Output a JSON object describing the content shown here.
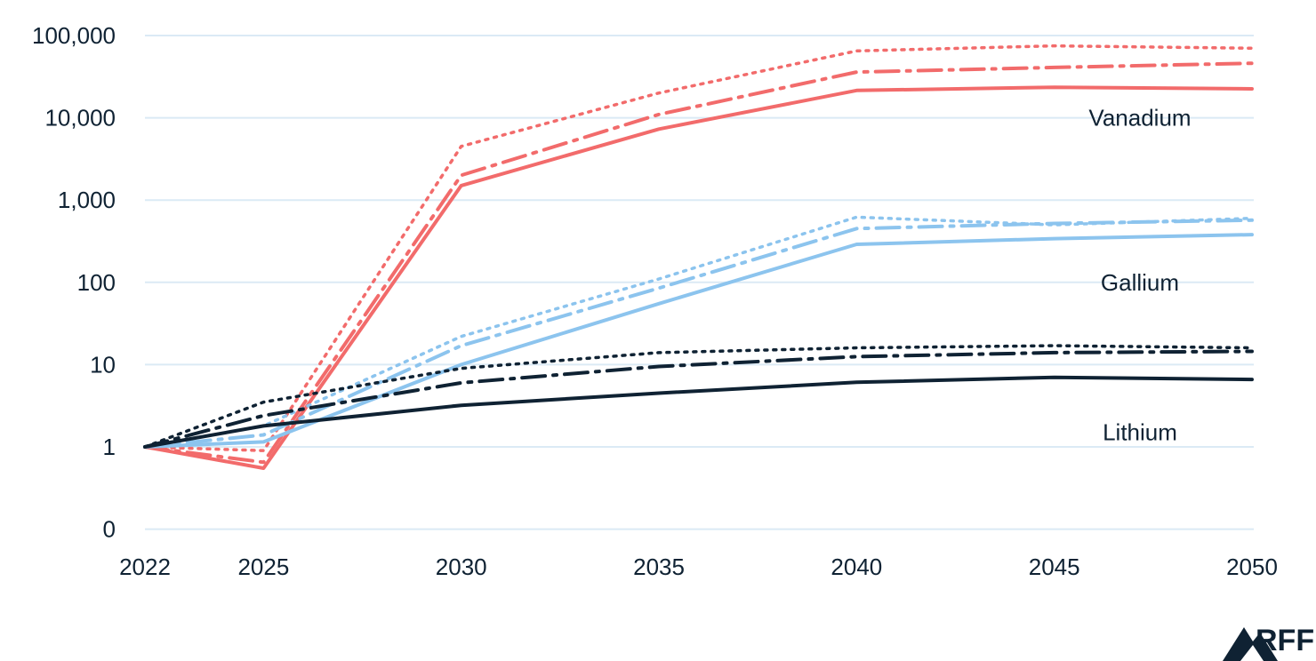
{
  "chart_data": {
    "type": "line",
    "scale": "log",
    "x": [
      2022,
      2025,
      2030,
      2035,
      2040,
      2045,
      2050
    ],
    "x_ticks": [
      "2022",
      "2025",
      "2030",
      "2035",
      "2040",
      "2045",
      "2050"
    ],
    "y_ticks": [
      {
        "value": 0.1,
        "label": "0"
      },
      {
        "value": 1,
        "label": "1"
      },
      {
        "value": 10,
        "label": "10"
      },
      {
        "value": 100,
        "label": "100"
      },
      {
        "value": 1000,
        "label": "1,000"
      },
      {
        "value": 10000,
        "label": "10,000"
      },
      {
        "value": 100000,
        "label": "100,000"
      }
    ],
    "ylim": [
      0.1,
      100000
    ],
    "grid": "horizontal",
    "colors": {
      "vanadium": "#f26b6b",
      "gallium": "#8cc4ee",
      "lithium": "#0f2233",
      "grid": "#dbeaf5"
    },
    "groups": [
      {
        "label": "Vanadium",
        "color": "#f26b6b",
        "series": [
          {
            "style": "solid",
            "values": [
              1,
              0.55,
              1500,
              7300,
              21500,
              23500,
              22500
            ]
          },
          {
            "style": "dashdot",
            "values": [
              1,
              0.65,
              2000,
              11000,
              36000,
              41000,
              46000
            ]
          },
          {
            "style": "dotted",
            "values": [
              1,
              0.9,
              4500,
              20000,
              65000,
              75000,
              70000
            ]
          }
        ]
      },
      {
        "label": "Gallium",
        "color": "#8cc4ee",
        "series": [
          {
            "style": "solid",
            "values": [
              1,
              1.15,
              10,
              55,
              290,
              340,
              380
            ]
          },
          {
            "style": "dashdot",
            "values": [
              1,
              1.4,
              17,
              85,
              450,
              520,
              570
            ]
          },
          {
            "style": "dotted",
            "values": [
              1,
              1.8,
              22,
              110,
              620,
              500,
              600
            ]
          }
        ]
      },
      {
        "label": "Lithium",
        "color": "#0f2233",
        "series": [
          {
            "style": "solid",
            "values": [
              1,
              1.8,
              3.2,
              4.5,
              6.1,
              7,
              6.6
            ]
          },
          {
            "style": "dashdot",
            "values": [
              1,
              2.4,
              6,
              9.5,
              12.5,
              14,
              14.5
            ]
          },
          {
            "style": "dotted",
            "values": [
              1,
              3.5,
              9,
              14,
              16,
              17,
              16
            ]
          }
        ]
      }
    ]
  },
  "logo": {
    "text": "RFF"
  }
}
